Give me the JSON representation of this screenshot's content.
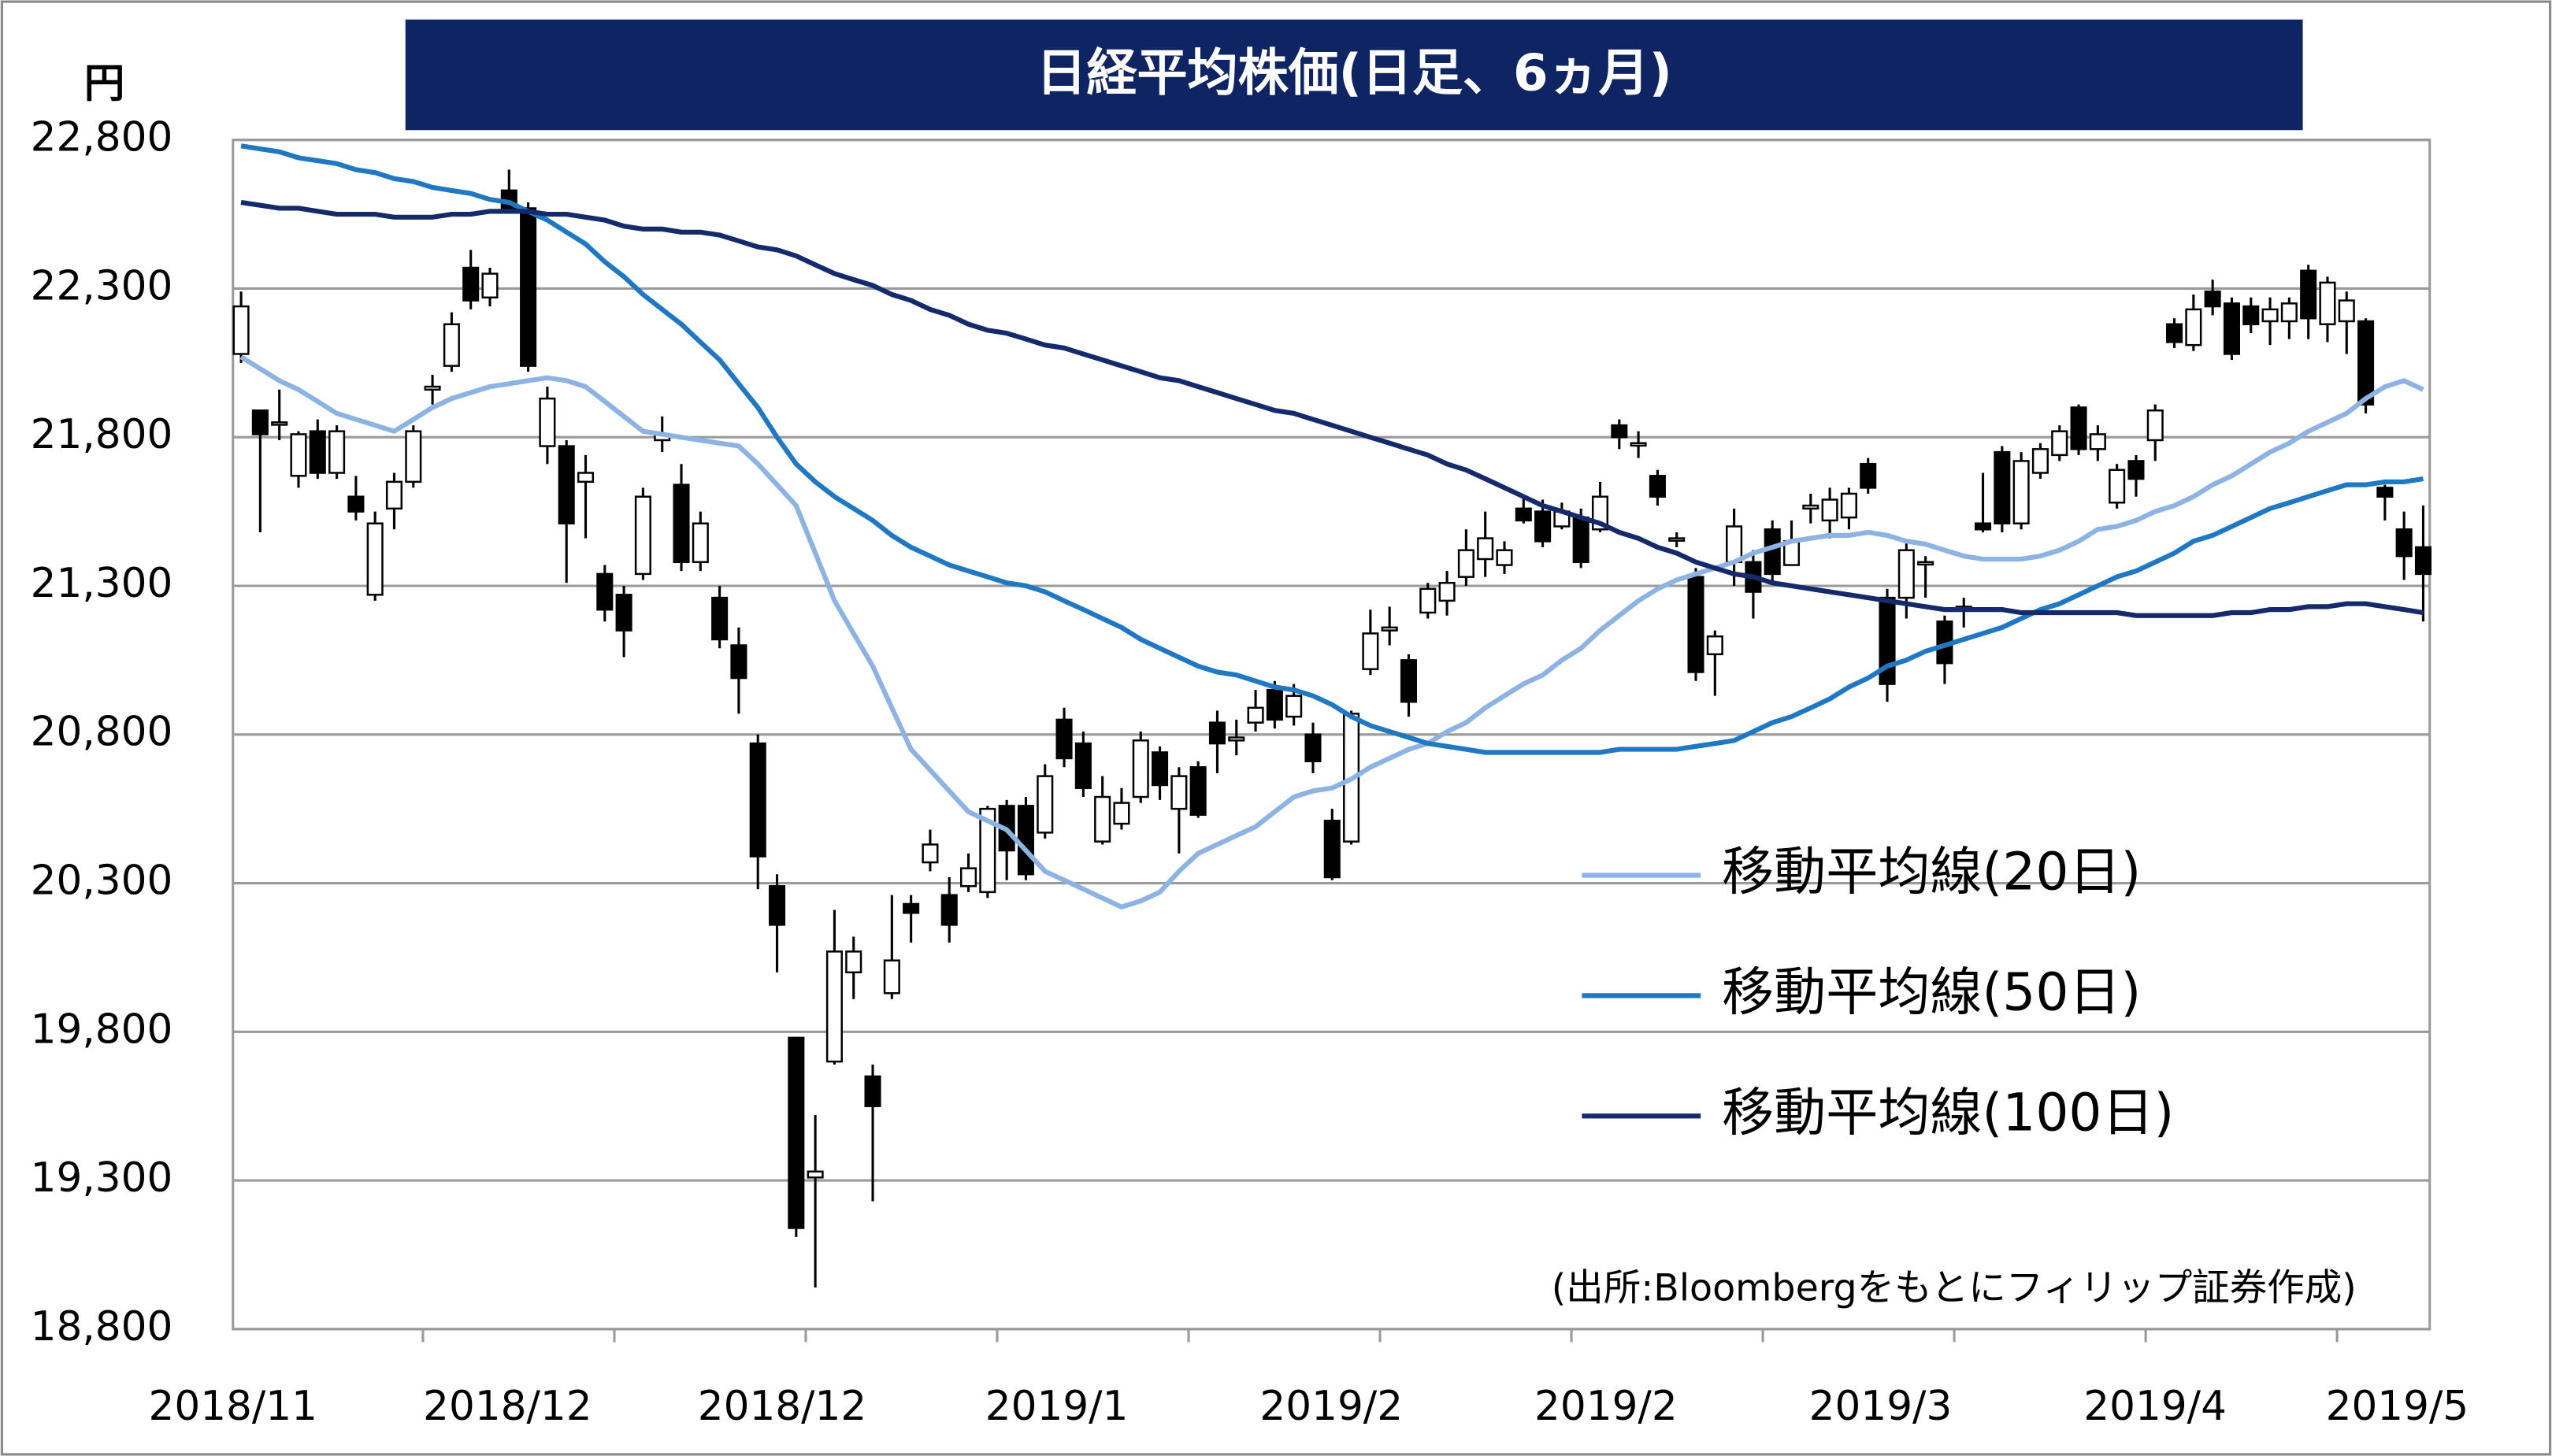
{
  "chart_data": {
    "type": "candlestick",
    "title": "日経平均株価(日足、6ヵ月)",
    "y_label": "円",
    "source": "(出所:Bloombergをもとにフィリップ証券作成)",
    "x_tick_labels": [
      "2018/11",
      "2018/12",
      "2018/12",
      "2019/1",
      "2019/2",
      "2019/2",
      "2019/3",
      "2019/4",
      "2019/5"
    ],
    "ylim": [
      18800,
      22800
    ],
    "yticks": [
      {
        "value": 18800,
        "label": "18,800"
      },
      {
        "value": 19300,
        "label": "19,300"
      },
      {
        "value": 19800,
        "label": "19,800"
      },
      {
        "value": 20300,
        "label": "20,300"
      },
      {
        "value": 20800,
        "label": "20,800"
      },
      {
        "value": 21300,
        "label": "21,300"
      },
      {
        "value": 21800,
        "label": "21,800"
      },
      {
        "value": 22300,
        "label": "22,300"
      },
      {
        "value": 22800,
        "label": "22,800"
      }
    ],
    "grid": true,
    "up_color": "#ffffff",
    "down_color": "#000000",
    "open": [
      22080,
      21890,
      21850,
      21670,
      21820,
      21680,
      21600,
      21270,
      21560,
      21650,
      21960,
      22040,
      22370,
      22270,
      22630,
      22570,
      21770,
      21770,
      21650,
      21340,
      21270,
      21340,
      21790,
      21640,
      21380,
      21260,
      21100,
      20770,
      20290,
      19780,
      19310,
      19700,
      20000,
      19650,
      19930,
      20230,
      20370,
      20260,
      20290,
      20270,
      20560,
      20560,
      20470,
      20850,
      20770,
      20440,
      20500,
      20590,
      20740,
      20550,
      20690,
      20840,
      20780,
      20840,
      20950,
      20860,
      20800,
      20510,
      20440,
      21020,
      21150,
      21050,
      21210,
      21250,
      21330,
      21390,
      21370,
      21560,
      21550,
      21500,
      21530,
      21490,
      21840,
      21780,
      21670,
      21460,
      21330,
      21070,
      21380,
      21380,
      21490,
      21370,
      21560,
      21520,
      21530,
      21710,
      21260,
      21260,
      21380,
      21180,
      21220,
      21510,
      21750,
      21510,
      21680,
      21740,
      21900,
      21760,
      21580,
      21720,
      21790,
      22180,
      22110,
      22290,
      22250,
      22240,
      22190,
      22190,
      22360,
      22180,
      22190,
      22190,
      21630,
      21490,
      21430
    ],
    "high": [
      22290,
      21890,
      21960,
      21820,
      21860,
      21840,
      21670,
      21550,
      21680,
      21840,
      22010,
      22220,
      22430,
      22370,
      22700,
      22590,
      21970,
      21790,
      21740,
      21370,
      21300,
      21630,
      21870,
      21710,
      21550,
      21300,
      21160,
      20800,
      20330,
      19780,
      19520,
      20210,
      20120,
      19690,
      20260,
      20260,
      20480,
      20320,
      20400,
      20560,
      20580,
      20590,
      20700,
      20890,
      20810,
      20660,
      20620,
      20810,
      20760,
      20690,
      20710,
      20880,
      20850,
      20950,
      20980,
      20970,
      20840,
      20550,
      20880,
      21220,
      21230,
      21070,
      21310,
      21350,
      21490,
      21550,
      21450,
      21600,
      21590,
      21580,
      21560,
      21650,
      21860,
      21820,
      21690,
      21480,
      21360,
      21150,
      21560,
      21420,
      21520,
      21520,
      21610,
      21630,
      21630,
      21730,
      21290,
      21450,
      21400,
      21200,
      21260,
      21680,
      21770,
      21750,
      21780,
      21840,
      21910,
      21840,
      21710,
      21740,
      21910,
      22200,
      22280,
      22330,
      22270,
      22270,
      22270,
      22270,
      22380,
      22340,
      22290,
      22200,
      21640,
      21550,
      21570
    ],
    "low": [
      22050,
      21480,
      21790,
      21630,
      21660,
      21660,
      21520,
      21250,
      21490,
      21630,
      21910,
      22020,
      22230,
      22240,
      22560,
      22020,
      21710,
      21310,
      21460,
      21180,
      21060,
      21320,
      21750,
      21350,
      21350,
      21090,
      20870,
      20280,
      20000,
      19110,
      18940,
      19690,
      19910,
      19230,
      19910,
      20100,
      20340,
      20100,
      20270,
      20250,
      20310,
      20310,
      20450,
      20690,
      20590,
      20430,
      20480,
      20570,
      20580,
      20400,
      20520,
      20670,
      20730,
      20810,
      20820,
      20830,
      20670,
      20310,
      20430,
      21000,
      21100,
      20860,
      21190,
      21200,
      21300,
      21330,
      21340,
      21510,
      21430,
      21490,
      21360,
      21480,
      21760,
      21730,
      21570,
      21430,
      20980,
      20930,
      21300,
      21190,
      21310,
      21370,
      21510,
      21460,
      21490,
      21610,
      20910,
      21190,
      21260,
      20970,
      21160,
      21480,
      21480,
      21490,
      21660,
      21720,
      21740,
      21720,
      21560,
      21600,
      21720,
      22100,
      22090,
      22210,
      22060,
      22150,
      22110,
      22130,
      22130,
      22120,
      22080,
      21880,
      21520,
      21320,
      21180
    ],
    "close": [
      22240,
      21810,
      21850,
      21810,
      21680,
      21820,
      21550,
      21510,
      21650,
      21820,
      21970,
      22180,
      22260,
      22350,
      22570,
      22040,
      21930,
      21510,
      21680,
      21220,
      21150,
      21600,
      21810,
      21380,
      21510,
      21120,
      20990,
      20390,
      20160,
      19140,
      19330,
      20070,
      20070,
      19550,
      20040,
      20200,
      20430,
      20160,
      20350,
      20550,
      20410,
      20330,
      20660,
      20720,
      20620,
      20590,
      20570,
      20780,
      20630,
      20660,
      20530,
      20770,
      20790,
      20890,
      20850,
      20930,
      20710,
      20320,
      20870,
      21140,
      21160,
      20910,
      21290,
      21310,
      21420,
      21460,
      21420,
      21520,
      21450,
      21550,
      21380,
      21600,
      21800,
      21780,
      21600,
      21460,
      21010,
      21130,
      21500,
      21280,
      21340,
      21450,
      21570,
      21590,
      21610,
      21630,
      20970,
      21420,
      21380,
      21040,
      21230,
      21490,
      21510,
      21720,
      21760,
      21820,
      21760,
      21810,
      21690,
      21660,
      21890,
      22120,
      22230,
      22240,
      22080,
      22180,
      22230,
      22250,
      22200,
      22320,
      22260,
      21910,
      21600,
      21400,
      21340
    ],
    "series": [
      {
        "name": "移動平均線(20日)",
        "color": "#8db3e2",
        "values": [
          22070,
          22030,
          21990,
          21960,
          21920,
          21880,
          21860,
          21840,
          21820,
          21860,
          21900,
          21930,
          21950,
          21970,
          21980,
          21990,
          22000,
          21990,
          21970,
          21920,
          21870,
          21820,
          21810,
          21800,
          21790,
          21780,
          21770,
          21710,
          21640,
          21570,
          21410,
          21250,
          21140,
          21030,
          20890,
          20750,
          20680,
          20610,
          20540,
          20510,
          20480,
          20410,
          20340,
          20310,
          20280,
          20250,
          20220,
          20240,
          20270,
          20340,
          20400,
          20430,
          20460,
          20490,
          20540,
          20590,
          20610,
          20620,
          20650,
          20690,
          20720,
          20750,
          20770,
          20810,
          20840,
          20890,
          20930,
          20970,
          21000,
          21050,
          21090,
          21150,
          21200,
          21250,
          21290,
          21320,
          21340,
          21360,
          21380,
          21410,
          21430,
          21450,
          21460,
          21470,
          21470,
          21480,
          21470,
          21450,
          21440,
          21420,
          21400,
          21390,
          21390,
          21390,
          21400,
          21420,
          21450,
          21490,
          21500,
          21520,
          21550,
          21570,
          21600,
          21640,
          21670,
          21710,
          21750,
          21780,
          21820,
          21850,
          21880,
          21930,
          21970,
          21990,
          21960
        ]
      },
      {
        "name": "移動平均線(50日)",
        "color": "#1f78c1",
        "values": [
          22780,
          22770,
          22760,
          22740,
          22730,
          22720,
          22700,
          22690,
          22670,
          22660,
          22640,
          22630,
          22620,
          22600,
          22590,
          22560,
          22530,
          22490,
          22450,
          22390,
          22340,
          22280,
          22230,
          22180,
          22120,
          22060,
          21980,
          21900,
          21800,
          21710,
          21650,
          21600,
          21560,
          21520,
          21470,
          21430,
          21400,
          21370,
          21350,
          21330,
          21310,
          21300,
          21280,
          21250,
          21220,
          21190,
          21160,
          21120,
          21090,
          21060,
          21030,
          21010,
          21000,
          20980,
          20960,
          20950,
          20930,
          20900,
          20860,
          20830,
          20810,
          20790,
          20770,
          20760,
          20750,
          20740,
          20740,
          20740,
          20740,
          20740,
          20740,
          20740,
          20750,
          20750,
          20750,
          20750,
          20760,
          20770,
          20780,
          20810,
          20840,
          20860,
          20890,
          20920,
          20960,
          20990,
          21030,
          21050,
          21080,
          21100,
          21120,
          21140,
          21160,
          21190,
          21220,
          21240,
          21270,
          21300,
          21330,
          21350,
          21380,
          21410,
          21450,
          21470,
          21500,
          21530,
          21560,
          21580,
          21600,
          21620,
          21640,
          21640,
          21650,
          21650,
          21660
        ]
      },
      {
        "name": "移動平均線(100日)",
        "color": "#142a6b",
        "values": [
          22590,
          22580,
          22570,
          22570,
          22560,
          22550,
          22550,
          22550,
          22540,
          22540,
          22540,
          22550,
          22550,
          22560,
          22560,
          22560,
          22550,
          22550,
          22540,
          22530,
          22510,
          22500,
          22500,
          22490,
          22490,
          22480,
          22460,
          22440,
          22430,
          22410,
          22380,
          22350,
          22330,
          22310,
          22280,
          22260,
          22230,
          22210,
          22180,
          22160,
          22150,
          22130,
          22110,
          22100,
          22080,
          22060,
          22040,
          22020,
          22000,
          21990,
          21970,
          21950,
          21930,
          21910,
          21890,
          21880,
          21860,
          21840,
          21820,
          21800,
          21780,
          21760,
          21740,
          21710,
          21690,
          21660,
          21630,
          21600,
          21570,
          21550,
          21530,
          21510,
          21480,
          21460,
          21430,
          21410,
          21380,
          21360,
          21340,
          21330,
          21310,
          21300,
          21290,
          21280,
          21270,
          21260,
          21250,
          21240,
          21230,
          21220,
          21220,
          21220,
          21220,
          21210,
          21210,
          21210,
          21210,
          21210,
          21210,
          21200,
          21200,
          21200,
          21200,
          21200,
          21210,
          21210,
          21220,
          21220,
          21230,
          21230,
          21240,
          21240,
          21230,
          21220,
          21210
        ]
      }
    ]
  }
}
